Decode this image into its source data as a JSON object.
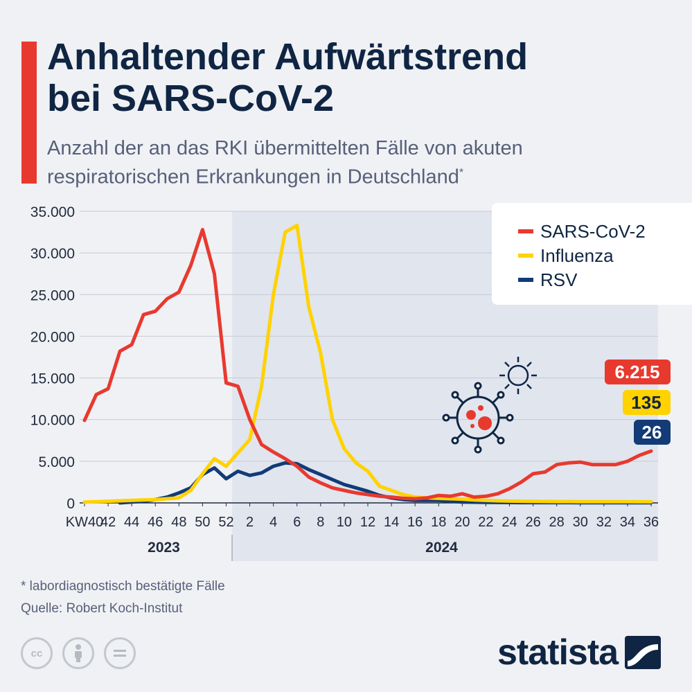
{
  "header": {
    "title_line1": "Anhaltender Aufwärtstrend",
    "title_line2": "bei SARS-CoV-2",
    "subtitle_line1": "Anzahl der an das RKI übermittelten Fälle von akuten",
    "subtitle_line2": "respiratorischen Erkrankungen in Deutschland",
    "subtitle_mark": "*"
  },
  "chart_data": {
    "type": "line",
    "x": [
      40,
      41,
      42,
      43,
      44,
      45,
      46,
      47,
      48,
      49,
      50,
      51,
      52,
      1,
      2,
      3,
      4,
      5,
      6,
      7,
      8,
      9,
      10,
      11,
      12,
      13,
      14,
      15,
      16,
      17,
      18,
      19,
      20,
      21,
      22,
      23,
      24,
      25,
      26,
      27,
      28,
      29,
      30,
      31,
      32,
      33,
      34,
      35,
      36
    ],
    "x_tick_labels": [
      "KW40",
      "42",
      "44",
      "46",
      "48",
      "50",
      "52",
      "2",
      "4",
      "6",
      "8",
      "10",
      "12",
      "14",
      "16",
      "18",
      "20",
      "22",
      "24",
      "26",
      "28",
      "30",
      "32",
      "34",
      "36"
    ],
    "year_labels": [
      "2023",
      "2024"
    ],
    "ylim": [
      0,
      35000
    ],
    "y_ticks": [
      "0",
      "5.000",
      "10.000",
      "15.000",
      "20.000",
      "25.000",
      "30.000",
      "35.000"
    ],
    "grid": true,
    "legend_position": "top-right",
    "series": [
      {
        "name": "SARS-CoV-2",
        "color": "#e8392f",
        "values": [
          9900,
          13000,
          13700,
          18200,
          19000,
          22600,
          23000,
          24500,
          25300,
          28500,
          32800,
          27500,
          14400,
          14000,
          10000,
          7000,
          6100,
          5300,
          4400,
          3100,
          2400,
          1800,
          1500,
          1200,
          1000,
          800,
          700,
          550,
          500,
          600,
          900,
          800,
          1100,
          700,
          800,
          1100,
          1700,
          2500,
          3500,
          3700,
          4600,
          4800,
          4900,
          4600,
          4600,
          4600,
          5000,
          5700,
          6215
        ]
      },
      {
        "name": "Influenza",
        "color": "#ffd200",
        "values": [
          100,
          150,
          200,
          250,
          300,
          350,
          400,
          500,
          600,
          1500,
          3500,
          5300,
          4400,
          6000,
          7600,
          14000,
          25000,
          32500,
          33300,
          23500,
          18000,
          10000,
          6500,
          4800,
          3800,
          2000,
          1500,
          1000,
          700,
          600,
          550,
          500,
          450,
          350,
          300,
          250,
          220,
          200,
          180,
          170,
          160,
          155,
          150,
          145,
          140,
          140,
          138,
          136,
          135
        ]
      },
      {
        "name": "RSV",
        "color": "#123b77",
        "values": [
          null,
          null,
          null,
          0,
          100,
          200,
          400,
          700,
          1200,
          1800,
          3400,
          4200,
          2900,
          3800,
          3300,
          3600,
          4400,
          4800,
          4700,
          4000,
          3400,
          2800,
          2200,
          1800,
          1400,
          900,
          600,
          400,
          300,
          300,
          300,
          200,
          100,
          80,
          60,
          50,
          40,
          35,
          30,
          30,
          30,
          30,
          28,
          28,
          28,
          27,
          27,
          26,
          26
        ]
      }
    ],
    "end_labels": [
      "6.215",
      "135",
      "26"
    ]
  },
  "footer": {
    "footnote": "* labordiagnostisch bestätigte Fälle",
    "source": "Quelle: Robert Koch-Institut",
    "brand": "statista",
    "license_icons": [
      "cc-icon",
      "by-icon",
      "nd-icon"
    ]
  },
  "icons": {
    "virus": "virus-icon",
    "sun": "sun-icon"
  }
}
